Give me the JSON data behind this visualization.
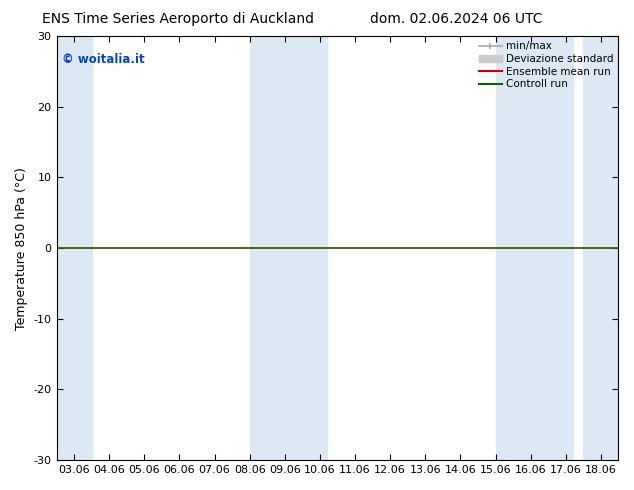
{
  "title_left": "ENS Time Series Aeroporto di Auckland",
  "title_right": "dom. 02.06.2024 06 UTC",
  "ylabel": "Temperature 850 hPa (°C)",
  "watermark": "© woitalia.it",
  "ylim": [
    -30,
    30
  ],
  "yticks": [
    -30,
    -20,
    -10,
    0,
    10,
    20,
    30
  ],
  "x_labels": [
    "03.06",
    "04.06",
    "05.06",
    "06.06",
    "07.06",
    "08.06",
    "09.06",
    "10.06",
    "11.06",
    "12.06",
    "13.06",
    "14.06",
    "15.06",
    "16.06",
    "17.06",
    "18.06"
  ],
  "shaded_ranges": [
    [
      -0.5,
      0.5
    ],
    [
      5.5,
      7.5
    ],
    [
      12.5,
      14.5
    ],
    [
      14.5,
      15.5
    ]
  ],
  "bg_color": "#ffffff",
  "shade_color": "#dce9f5",
  "legend_items": [
    {
      "label": "min/max",
      "color": "#aaaaaa",
      "lw": 1.5
    },
    {
      "label": "Deviazione standard",
      "color": "#cccccc",
      "lw": 6
    },
    {
      "label": "Ensemble mean run",
      "color": "#cc0000",
      "lw": 1.5
    },
    {
      "label": "Controll run",
      "color": "#006600",
      "lw": 1.5
    }
  ],
  "hline_y": -0.5,
  "hline_color": "#555500",
  "hline_lw": 1.2,
  "title_fontsize": 10,
  "tick_fontsize": 8,
  "ylabel_fontsize": 9,
  "watermark_color": "#0044cc"
}
